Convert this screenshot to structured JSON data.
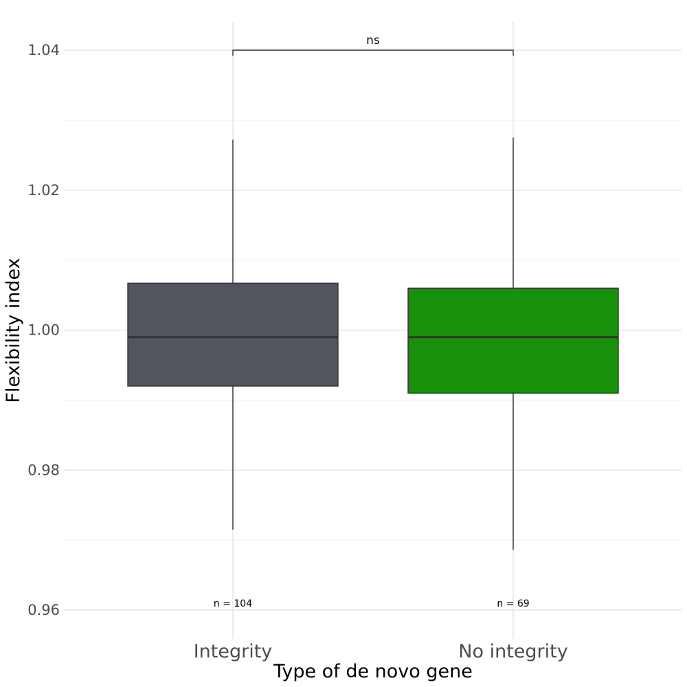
{
  "chart_data": {
    "type": "box",
    "title": "",
    "xlabel": "Type of de novo gene",
    "ylabel": "Flexibility index",
    "ylim": [
      0.956,
      1.044
    ],
    "y_ticks": [
      0.96,
      0.98,
      1.0,
      1.02,
      1.04
    ],
    "y_tick_labels": [
      "0.96",
      "0.98",
      "1.00",
      "1.02",
      "1.04"
    ],
    "y_minor_ticks": [
      0.97,
      0.99,
      1.01,
      1.03
    ],
    "grid": true,
    "categories": [
      "Integrity",
      "No integrity"
    ],
    "boxes": [
      {
        "name": "Integrity",
        "whisker_low": 0.9715,
        "q1": 0.992,
        "median": 0.999,
        "q3": 1.0067,
        "whisker_high": 1.0272,
        "n_label": "n = 104",
        "color": "#50555e"
      },
      {
        "name": "No integrity",
        "whisker_low": 0.9686,
        "q1": 0.991,
        "median": 0.999,
        "q3": 1.006,
        "whisker_high": 1.0275,
        "n_label": "n = 69",
        "color": "#18910a"
      }
    ],
    "n_label_y": 0.961,
    "significance": {
      "label": "ns",
      "y": 1.04,
      "between": [
        "Integrity",
        "No integrity"
      ]
    }
  }
}
